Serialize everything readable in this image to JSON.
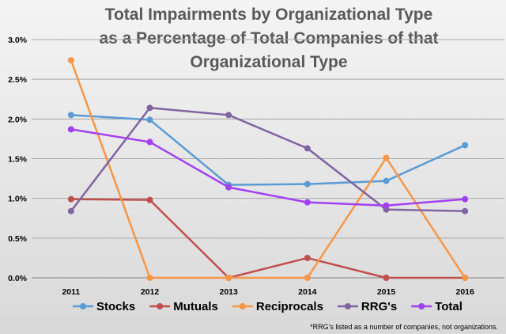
{
  "chart_data": {
    "type": "line",
    "title_lines": [
      "Total Impairments by Organizational Type",
      "as a Percentage of Total Companies of that",
      "Organizational Type"
    ],
    "categories": [
      "2011",
      "2012",
      "2013",
      "2014",
      "2015",
      "2016"
    ],
    "ylim": [
      0,
      3.0
    ],
    "yticks": [
      0,
      0.5,
      1.0,
      1.5,
      2.0,
      2.5,
      3.0
    ],
    "ytick_labels": [
      "0.0%",
      "0.5%",
      "1.0%",
      "1.5%",
      "2.0%",
      "2.5%",
      "3.0%"
    ],
    "grid": true,
    "legend_position": "bottom",
    "series": [
      {
        "name": "Stocks",
        "color": "#5b9bd5",
        "values": [
          2.05,
          1.99,
          1.17,
          1.18,
          1.22,
          1.67
        ]
      },
      {
        "name": "Mutuals",
        "color": "#c0504d",
        "values": [
          0.99,
          0.98,
          0.0,
          0.25,
          0.0,
          0.0
        ]
      },
      {
        "name": "Reciprocals",
        "color": "#f79646",
        "values": [
          2.74,
          0.0,
          0.0,
          0.0,
          1.51,
          0.0
        ]
      },
      {
        "name": "RRG's",
        "color": "#8064a2",
        "values": [
          0.84,
          2.14,
          2.05,
          1.63,
          0.86,
          0.84
        ]
      },
      {
        "name": "Total",
        "color": "#a240f2",
        "values": [
          1.87,
          1.71,
          1.14,
          0.95,
          0.91,
          0.99
        ]
      }
    ],
    "footnote": "*RRG's listed as a number of companies, not organizations."
  }
}
